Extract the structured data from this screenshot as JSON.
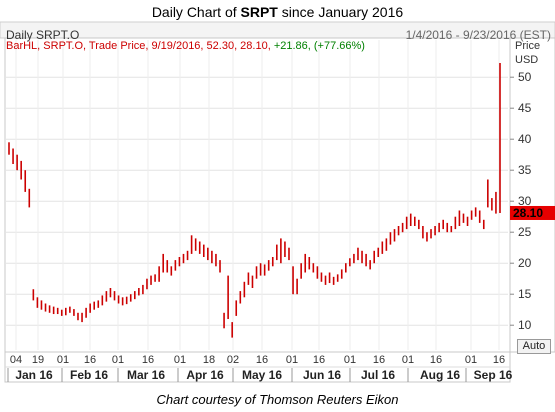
{
  "title": {
    "pre": "Daily Chart of ",
    "ticker": "SRPT",
    "post": " since January 2016"
  },
  "header": {
    "instrument": "Daily SRPT.O",
    "range": "1/4/2016 - 9/23/2016 (EST)"
  },
  "legend": {
    "part1": "BarHL, SRPT.O, Trade Price, 9/19/2016, 52.30, 28.10, ",
    "change": "+21.86, (+77.66%)"
  },
  "price_label": {
    "top": "Price",
    "bottom": "USD"
  },
  "last_price": "28.10",
  "auto_label": "Auto",
  "caption": "Chart courtesy of Thomson Reuters Eikon",
  "colors": {
    "bars": "#cc0000",
    "last_price_bg": "#e60000",
    "change": "#008000"
  },
  "chart_data": {
    "type": "bar",
    "style": "high-low bars",
    "ylim": [
      6,
      56
    ],
    "yticks": [
      10,
      15,
      20,
      25,
      30,
      35,
      40,
      45,
      50
    ],
    "day_ticks": [
      "04",
      "19",
      "01",
      "16",
      "01",
      "16",
      "01",
      "18",
      "02",
      "16",
      "01",
      "16",
      "01",
      "16",
      "01",
      "16",
      "01",
      "16"
    ],
    "month_labels": [
      "Jan 16",
      "Feb 16",
      "Mar 16",
      "Apr 16",
      "May 16",
      "Jun 16",
      "Jul 16",
      "Aug 16",
      "Sep 16"
    ],
    "bars": [
      [
        39.5,
        37.5
      ],
      [
        38.5,
        36.0
      ],
      [
        37.5,
        35.0
      ],
      [
        36.5,
        33.5
      ],
      [
        35.0,
        31.5
      ],
      [
        32.0,
        29.0
      ],
      [
        15.8,
        14.0
      ],
      [
        14.5,
        12.8
      ],
      [
        14.0,
        12.5
      ],
      [
        13.5,
        12.2
      ],
      [
        13.2,
        12.0
      ],
      [
        13.0,
        11.8
      ],
      [
        12.8,
        11.8
      ],
      [
        12.5,
        11.5
      ],
      [
        12.8,
        11.6
      ],
      [
        13.0,
        12.0
      ],
      [
        12.6,
        11.5
      ],
      [
        12.0,
        10.8
      ],
      [
        12.0,
        10.5
      ],
      [
        12.8,
        11.2
      ],
      [
        13.5,
        12.0
      ],
      [
        13.8,
        12.5
      ],
      [
        14.0,
        12.8
      ],
      [
        14.8,
        13.2
      ],
      [
        15.5,
        13.8
      ],
      [
        16.0,
        14.5
      ],
      [
        15.5,
        14.0
      ],
      [
        14.8,
        13.5
      ],
      [
        14.5,
        13.2
      ],
      [
        14.6,
        13.4
      ],
      [
        15.0,
        13.8
      ],
      [
        15.5,
        14.2
      ],
      [
        16.0,
        14.8
      ],
      [
        16.5,
        15.0
      ],
      [
        17.5,
        15.8
      ],
      [
        18.0,
        16.5
      ],
      [
        18.2,
        17.0
      ],
      [
        19.5,
        17.0
      ],
      [
        21.5,
        18.5
      ],
      [
        20.5,
        18.5
      ],
      [
        19.5,
        18.0
      ],
      [
        20.5,
        18.8
      ],
      [
        21.0,
        19.5
      ],
      [
        21.5,
        20.0
      ],
      [
        22.0,
        20.5
      ],
      [
        24.5,
        21.5
      ],
      [
        24.0,
        22.0
      ],
      [
        23.5,
        21.5
      ],
      [
        23.0,
        21.0
      ],
      [
        22.5,
        20.5
      ],
      [
        22.0,
        20.0
      ],
      [
        21.5,
        19.5
      ],
      [
        20.5,
        18.5
      ],
      [
        12.0,
        9.5
      ],
      [
        18.0,
        11.0
      ],
      [
        10.5,
        8.0
      ],
      [
        14.0,
        11.5
      ],
      [
        15.5,
        13.5
      ],
      [
        17.0,
        14.5
      ],
      [
        18.5,
        16.5
      ],
      [
        18.0,
        16.0
      ],
      [
        19.5,
        17.5
      ],
      [
        20.0,
        18.0
      ],
      [
        19.8,
        18.0
      ],
      [
        20.5,
        18.8
      ],
      [
        21.0,
        19.5
      ],
      [
        23.0,
        20.5
      ],
      [
        24.0,
        20.0
      ],
      [
        23.5,
        21.0
      ],
      [
        22.5,
        20.5
      ],
      [
        19.5,
        15.0
      ],
      [
        17.5,
        15.0
      ],
      [
        20.0,
        17.5
      ],
      [
        21.5,
        18.5
      ],
      [
        21.0,
        19.0
      ],
      [
        20.0,
        18.5
      ],
      [
        19.5,
        17.5
      ],
      [
        18.5,
        17.0
      ],
      [
        18.0,
        16.5
      ],
      [
        18.5,
        16.8
      ],
      [
        17.8,
        16.5
      ],
      [
        18.2,
        17.0
      ],
      [
        19.0,
        17.5
      ],
      [
        20.0,
        18.5
      ],
      [
        20.8,
        19.5
      ],
      [
        21.5,
        20.0
      ],
      [
        22.5,
        20.5
      ],
      [
        22.0,
        20.0
      ],
      [
        21.5,
        19.5
      ],
      [
        20.5,
        19.0
      ],
      [
        22.0,
        20.0
      ],
      [
        22.5,
        21.0
      ],
      [
        23.5,
        21.5
      ],
      [
        24.0,
        22.0
      ],
      [
        25.0,
        23.0
      ],
      [
        25.5,
        23.5
      ],
      [
        26.0,
        24.5
      ],
      [
        26.5,
        25.0
      ],
      [
        27.5,
        25.5
      ],
      [
        28.0,
        26.0
      ],
      [
        27.5,
        26.0
      ],
      [
        27.0,
        25.5
      ],
      [
        26.0,
        24.0
      ],
      [
        25.0,
        23.5
      ],
      [
        25.5,
        24.0
      ],
      [
        26.0,
        24.5
      ],
      [
        26.5,
        25.0
      ],
      [
        27.0,
        25.5
      ],
      [
        26.5,
        25.0
      ],
      [
        26.0,
        25.0
      ],
      [
        27.5,
        25.5
      ],
      [
        28.5,
        26.0
      ],
      [
        28.0,
        26.5
      ],
      [
        27.5,
        26.0
      ],
      [
        28.5,
        27.0
      ],
      [
        29.0,
        27.5
      ],
      [
        28.5,
        26.5
      ],
      [
        27.0,
        25.5
      ],
      [
        33.5,
        29.0
      ],
      [
        30.5,
        28.5
      ],
      [
        31.5,
        28.0
      ],
      [
        52.3,
        28.1
      ]
    ]
  }
}
